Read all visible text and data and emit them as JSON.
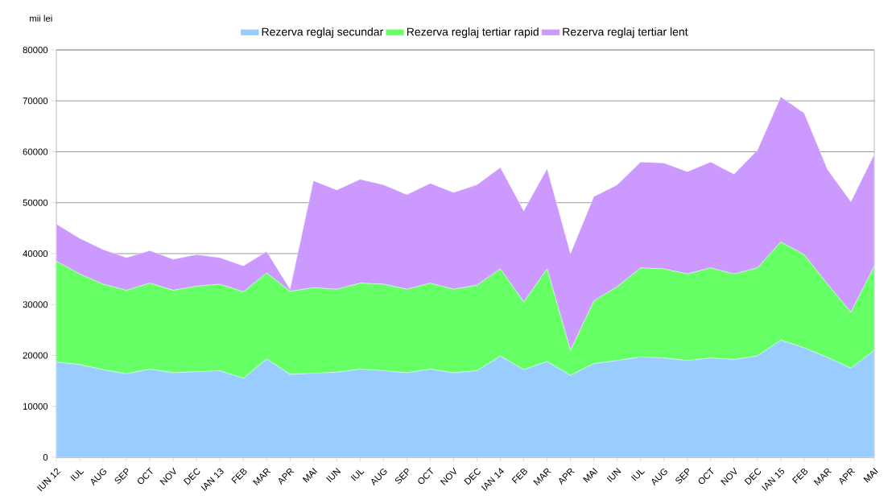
{
  "chart_data": {
    "type": "area",
    "stacked": true,
    "ylabel": "mii lei",
    "categories": [
      "IUN 12",
      "IUL",
      "AUG",
      "SEP",
      "OCT",
      "NOV",
      "DEC",
      "IAN 13",
      "FEB",
      "MAR",
      "APR",
      "MAI",
      "IUN",
      "IUL",
      "AUG",
      "SEP",
      "OCT",
      "NOV",
      "DEC",
      "IAN 14",
      "FEB",
      "MAR",
      "APR",
      "MAI",
      "IUN",
      "IUL",
      "AUG",
      "SEP",
      "OCT",
      "NOV",
      "DEC",
      "IAN 15",
      "FEB",
      "MAR",
      "APR",
      "MAI"
    ],
    "series": [
      {
        "name": "Rezerva reglaj secundar",
        "color": "#99ccff",
        "values": [
          18700,
          18200,
          17200,
          16400,
          17300,
          16600,
          16800,
          17000,
          15500,
          19300,
          16300,
          16500,
          16700,
          17300,
          17000,
          16600,
          17300,
          16600,
          17000,
          19900,
          17200,
          18800,
          16100,
          18400,
          19000,
          19700,
          19500,
          19000,
          19500,
          19200,
          19900,
          23000,
          21500,
          19600,
          17500,
          21000
        ]
      },
      {
        "name": "Rezerva reglaj tertiar rapid",
        "color": "#66ff66",
        "values": [
          19800,
          17800,
          16800,
          16400,
          16900,
          16200,
          16800,
          17000,
          17000,
          16900,
          16300,
          16800,
          16300,
          16900,
          17000,
          16400,
          16900,
          16400,
          16800,
          17100,
          13300,
          18200,
          4900,
          12300,
          14500,
          17500,
          17500,
          17000,
          17700,
          16800,
          17300,
          19300,
          18300,
          14400,
          11000,
          16500
        ]
      },
      {
        "name": "Rezerva reglaj tertiar lent",
        "color": "#cc99ff",
        "values": [
          7300,
          7000,
          6800,
          6400,
          6400,
          6100,
          6200,
          5200,
          5100,
          4200,
          400,
          21000,
          19500,
          20400,
          19500,
          18600,
          19600,
          19000,
          19700,
          19900,
          17900,
          19700,
          19000,
          20500,
          20000,
          20800,
          20800,
          20100,
          20800,
          19600,
          23100,
          28500,
          27800,
          22500,
          21700,
          22000
        ]
      }
    ],
    "ylim": [
      0,
      80000
    ],
    "yticks": [
      0,
      10000,
      20000,
      30000,
      40000,
      50000,
      60000,
      70000,
      80000
    ],
    "grid": "y",
    "legend": "top"
  }
}
